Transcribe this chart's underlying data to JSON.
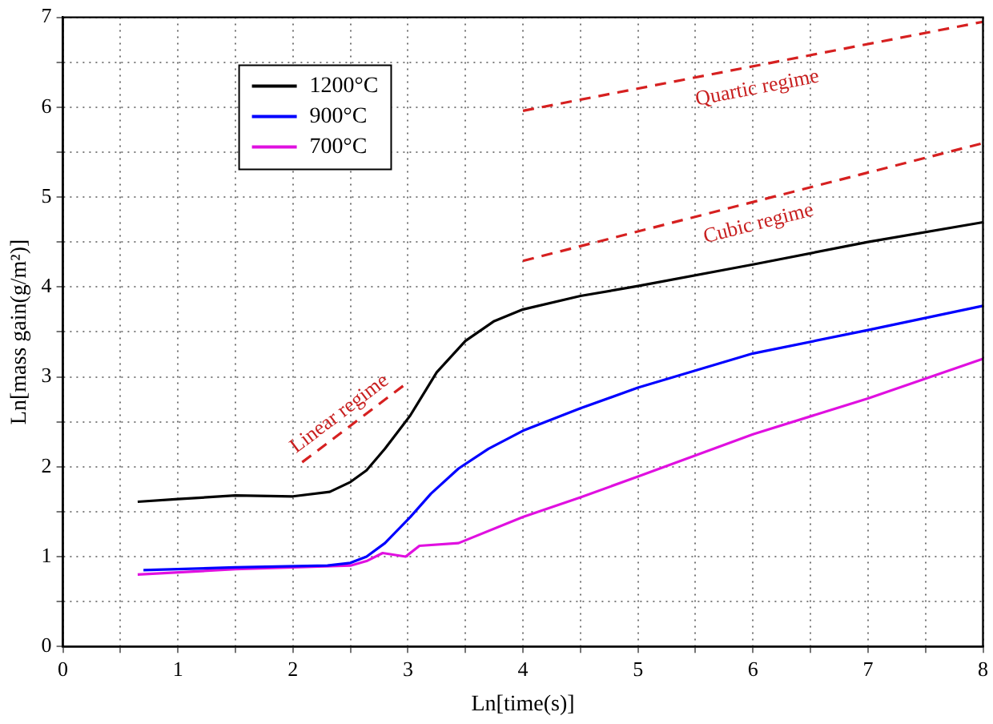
{
  "chart_data": {
    "type": "line",
    "xlabel": "Ln[time(s)]",
    "ylabel": "Ln[mass gain(g/m²)]",
    "xlim": [
      0,
      8
    ],
    "ylim": [
      0,
      7
    ],
    "xticks": [
      0,
      {
        "value": 0.5,
        "label": null
      },
      1,
      {
        "value": 1.5,
        "label": null
      },
      2,
      {
        "value": 2.5,
        "label": null
      },
      3,
      {
        "value": 3.5,
        "label": null
      },
      4,
      {
        "value": 4.5,
        "label": null
      },
      5,
      {
        "value": 5.5,
        "label": null
      },
      6,
      {
        "value": 6.5,
        "label": null
      },
      7,
      {
        "value": 7.5,
        "label": null
      },
      8
    ],
    "yticks": [
      0,
      {
        "value": 0.5,
        "label": null
      },
      1,
      {
        "value": 1.5,
        "label": null
      },
      2,
      {
        "value": 2.5,
        "label": null
      },
      3,
      {
        "value": 3.5,
        "label": null
      },
      4,
      {
        "value": 4.5,
        "label": null
      },
      5,
      {
        "value": 5.5,
        "label": null
      },
      6,
      {
        "value": 6.5,
        "label": null
      },
      7
    ],
    "grid": true,
    "legend": "top left",
    "marker": "none",
    "series": [
      {
        "name": "1200°C",
        "color": "#000000",
        "line_style": "solid",
        "x": [
          0.65,
          1.0,
          1.5,
          2.0,
          2.32,
          2.5,
          2.64,
          2.8,
          3.02,
          3.25,
          3.5,
          3.75,
          4.0,
          4.5,
          5.0,
          6.0,
          7.0,
          8.0
        ],
        "values": [
          1.61,
          1.64,
          1.68,
          1.67,
          1.72,
          1.83,
          1.96,
          2.2,
          2.57,
          3.05,
          3.4,
          3.62,
          3.75,
          3.9,
          4.01,
          4.25,
          4.5,
          4.72
        ]
      },
      {
        "name": "900°C",
        "color": "#0000ff",
        "line_style": "solid",
        "x": [
          0.7,
          1.5,
          2.3,
          2.5,
          2.64,
          2.8,
          3.02,
          3.2,
          3.44,
          3.7,
          4.0,
          4.5,
          5.0,
          6.0,
          7.0,
          8.0
        ],
        "values": [
          0.85,
          0.88,
          0.9,
          0.93,
          1.0,
          1.15,
          1.44,
          1.7,
          1.98,
          2.2,
          2.4,
          2.65,
          2.88,
          3.26,
          3.52,
          3.79
        ]
      },
      {
        "name": "700°C",
        "color": "#e010e0",
        "line_style": "solid",
        "x": [
          0.65,
          1.5,
          2.5,
          2.64,
          2.78,
          2.98,
          3.1,
          3.44,
          4.0,
          4.5,
          5.0,
          6.0,
          7.0,
          8.0
        ],
        "values": [
          0.8,
          0.86,
          0.9,
          0.95,
          1.04,
          1.0,
          1.12,
          1.15,
          1.44,
          1.66,
          1.89,
          2.36,
          2.76,
          3.2
        ]
      },
      {
        "color": "#d62020",
        "line_style": "dashed",
        "x": [
          2.08,
          2.99
        ],
        "values": [
          2.05,
          2.93
        ]
      },
      {
        "color": "#d62020",
        "line_style": "dashed",
        "x": [
          4.0,
          8.0
        ],
        "values": [
          4.29,
          5.6
        ]
      },
      {
        "color": "#d62020",
        "line_style": "dashed",
        "x": [
          4.0,
          8.0
        ],
        "values": [
          5.96,
          6.95
        ]
      }
    ],
    "annotations": [
      "Linear regime",
      "Cubic regime",
      "Quartic regime"
    ]
  }
}
